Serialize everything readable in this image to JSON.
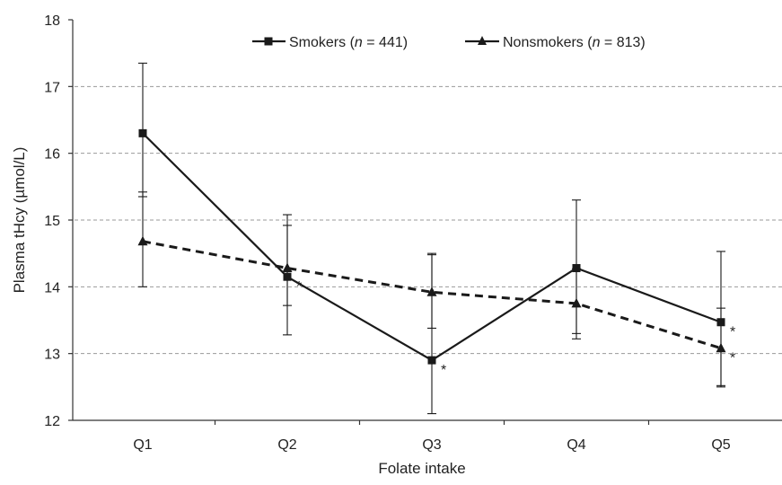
{
  "chart_data": {
    "type": "line",
    "xlabel": "Folate intake",
    "ylabel": "Plasma tHcy (µmol/L)",
    "categories": [
      "Q1",
      "Q2",
      "Q3",
      "Q4",
      "Q5"
    ],
    "ylim": [
      12,
      18
    ],
    "yticks": [
      12,
      13,
      14,
      15,
      16,
      17,
      18
    ],
    "grid": "dashed horizontal",
    "legend_position": "top",
    "series": [
      {
        "name_main": "Smokers (",
        "name_n": "n",
        "name_rest": " = 441)",
        "marker": "square",
        "line_style": "solid",
        "values": [
          16.3,
          14.15,
          12.9,
          14.28,
          13.47
        ],
        "error_low": [
          15.35,
          13.28,
          12.1,
          13.3,
          12.5
        ],
        "error_high": [
          17.35,
          15.08,
          14.5,
          15.3,
          14.53
        ],
        "significance": [
          "",
          "*",
          "*",
          "",
          "*"
        ]
      },
      {
        "name_main": "Nonsmokers (",
        "name_n": "n",
        "name_rest": " = 813)",
        "marker": "triangle",
        "line_style": "dashed",
        "values": [
          14.68,
          14.28,
          13.92,
          13.75,
          13.08
        ],
        "error_low": [
          14.0,
          13.72,
          13.38,
          13.22,
          12.52
        ],
        "error_high": [
          15.42,
          14.92,
          14.48,
          14.27,
          13.68
        ],
        "significance": [
          "",
          "",
          "",
          "",
          "*"
        ]
      }
    ],
    "colors": {
      "line": "#1a1a1a",
      "grid": "#999999",
      "axis": "#333333"
    }
  }
}
